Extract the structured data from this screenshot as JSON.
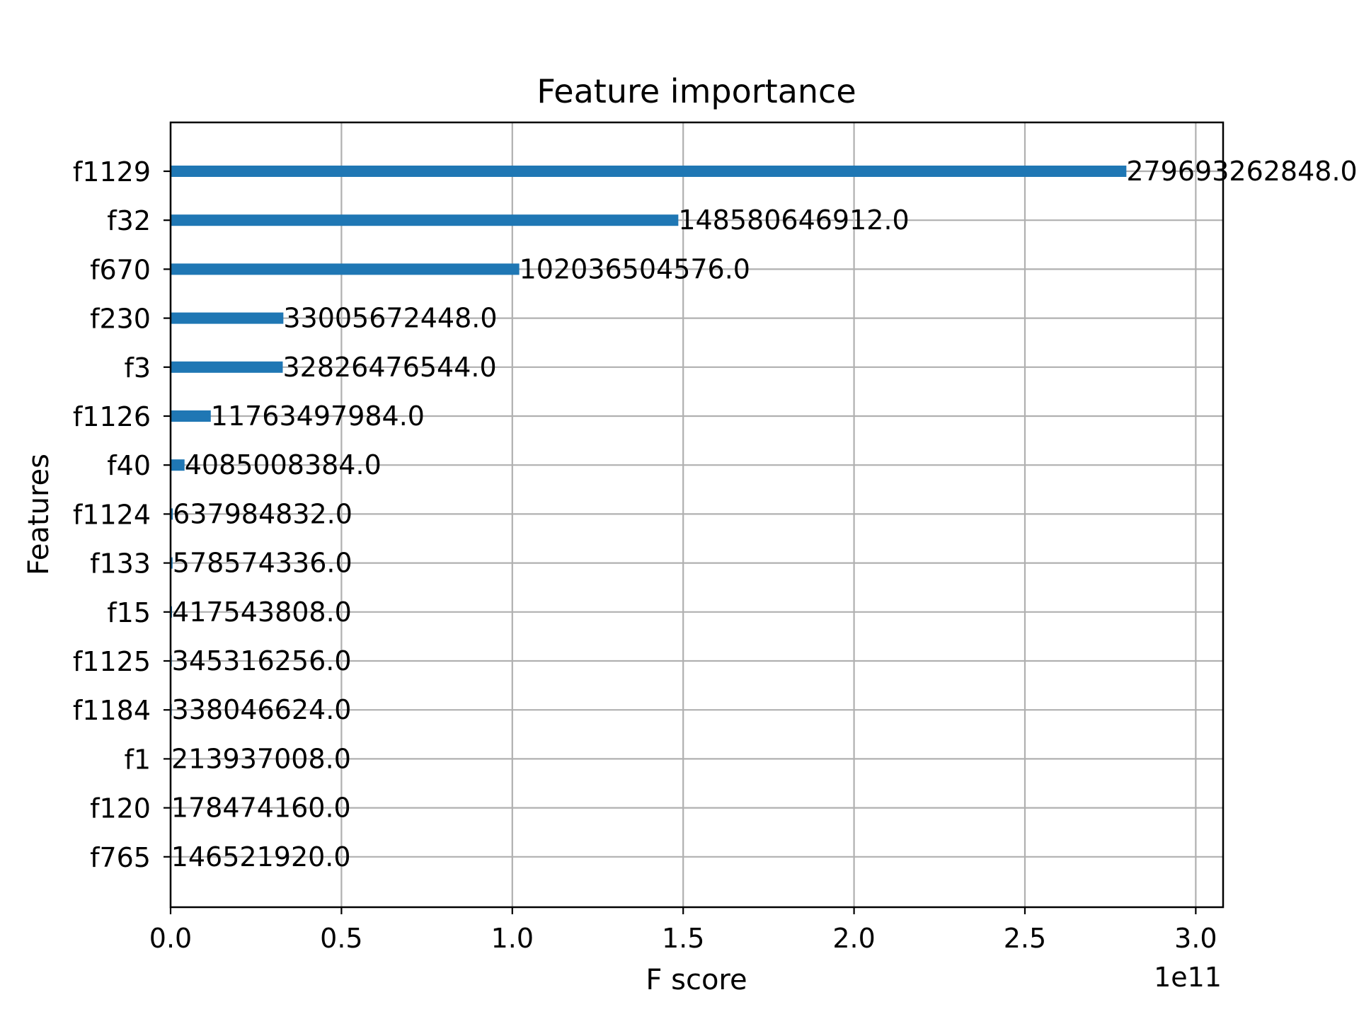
{
  "chart_data": {
    "type": "bar",
    "orientation": "horizontal",
    "title": "Feature importance",
    "xlabel": "F score",
    "ylabel": "Features",
    "x_scale_label": "1e11",
    "x_scale_factor": 100000000000,
    "xlim": [
      0,
      308000000000
    ],
    "x_ticks": [
      0,
      50000000000,
      100000000000,
      150000000000,
      200000000000,
      250000000000,
      300000000000
    ],
    "x_tick_labels": [
      "0.0",
      "0.5",
      "1.0",
      "1.5",
      "2.0",
      "2.5",
      "3.0"
    ],
    "grid": true,
    "bar_color": "#1f77b4",
    "grid_color": "#b0b0b0",
    "categories": [
      "f1129",
      "f32",
      "f670",
      "f230",
      "f3",
      "f1126",
      "f40",
      "f1124",
      "f133",
      "f15",
      "f1125",
      "f1184",
      "f1",
      "f120",
      "f765"
    ],
    "values": [
      279693262848,
      148580646912,
      102036504576,
      33005672448,
      32826476544,
      11763497984,
      4085008384,
      637984832,
      578574336,
      417543808,
      345316256,
      338046624,
      213937008,
      178474160,
      146521920
    ],
    "value_labels": [
      "279693262848.0",
      "148580646912.0",
      "102036504576.0",
      "33005672448.0",
      "32826476544.0",
      "11763497984.0",
      "4085008384.0",
      "637984832.0",
      "578574336.0",
      "417543808.0",
      "345316256.0",
      "338046624.0",
      "213937008.0",
      "178474160.0",
      "146521920.0"
    ]
  }
}
